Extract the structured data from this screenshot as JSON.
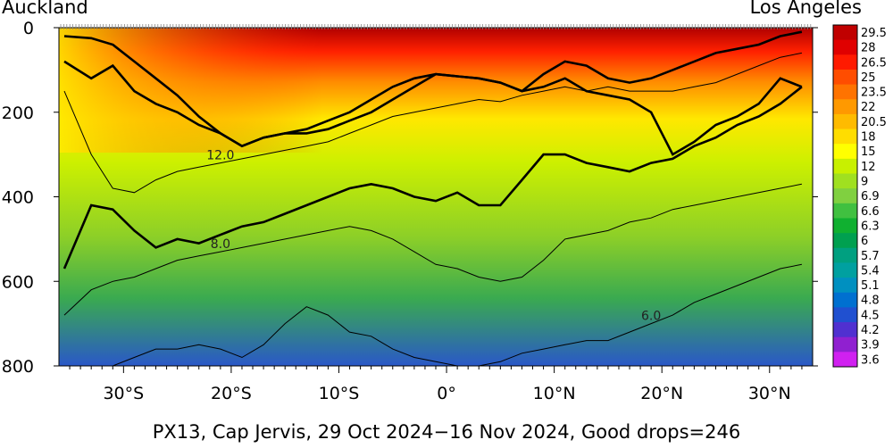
{
  "labels": {
    "left_station": "Auckland",
    "right_station": "Los Angeles",
    "caption": "PX13, Cap Jervis, 29 Oct 2024−16 Nov 2024, Good drops=246"
  },
  "chart_data": {
    "type": "heatmap",
    "title": "PX13, Cap Jervis, 29 Oct 2024−16 Nov 2024, Good drops=246",
    "xlabel": "",
    "ylabel": "",
    "xlim": [
      -36,
      34
    ],
    "ylim": [
      800,
      0
    ],
    "x_ticks": [
      {
        "value": -30,
        "label": "30°S"
      },
      {
        "value": -20,
        "label": "20°S"
      },
      {
        "value": -10,
        "label": "10°S"
      },
      {
        "value": 0,
        "label": "0°"
      },
      {
        "value": 10,
        "label": "10°N"
      },
      {
        "value": 20,
        "label": "20°N"
      },
      {
        "value": 30,
        "label": "30°N"
      }
    ],
    "y_ticks": [
      {
        "value": 0,
        "label": "0"
      },
      {
        "value": 200,
        "label": "200"
      },
      {
        "value": 400,
        "label": "400"
      },
      {
        "value": 600,
        "label": "600"
      },
      {
        "value": 800,
        "label": "800"
      }
    ],
    "colorbar": {
      "levels": [
        "29.5",
        "28",
        "26.5",
        "25",
        "23.5",
        "22",
        "20.5",
        "18",
        "15",
        "12",
        "9",
        "6.9",
        "6.6",
        "6.3",
        "6",
        "5.7",
        "5.4",
        "5.1",
        "4.8",
        "4.5",
        "4.2",
        "3.9",
        "3.6"
      ],
      "colors": [
        "#c00000",
        "#e00000",
        "#ff1a00",
        "#ff4d00",
        "#ff7300",
        "#ff9900",
        "#ffbb00",
        "#ffdd00",
        "#ffff00",
        "#c8f000",
        "#a0e020",
        "#80d040",
        "#40c040",
        "#10b030",
        "#00a050",
        "#00a080",
        "#00a0a0",
        "#0090c0",
        "#0070d0",
        "#2050d0",
        "#5030d0",
        "#9020d0",
        "#d020f0"
      ]
    },
    "contours": [
      {
        "label": "",
        "bold": true,
        "x": [
          -35.5,
          -33,
          -31,
          -29,
          -27,
          -25,
          -23,
          -21,
          -19,
          -17,
          -15,
          -13,
          -11,
          -9,
          -7,
          -5,
          -3,
          -1,
          1,
          3,
          5,
          7,
          9,
          11,
          13,
          15,
          17,
          19,
          21,
          23,
          25,
          27,
          29,
          31,
          33
        ],
        "y": [
          20,
          25,
          40,
          80,
          120,
          160,
          210,
          250,
          280,
          260,
          250,
          240,
          220,
          200,
          170,
          140,
          120,
          110,
          115,
          120,
          130,
          150,
          110,
          80,
          90,
          120,
          130,
          120,
          100,
          80,
          60,
          50,
          40,
          20,
          10
        ]
      },
      {
        "label": "",
        "bold": true,
        "x": [
          -35.5,
          -33,
          -31,
          -29,
          -27,
          -25,
          -23,
          -21,
          -19,
          -17,
          -15,
          -13,
          -11,
          -9,
          -7,
          -5,
          -3,
          -1,
          1,
          3,
          5,
          7,
          9,
          11,
          13,
          15,
          17,
          19,
          21,
          23,
          25,
          27,
          29,
          31,
          33
        ],
        "y": [
          80,
          120,
          90,
          150,
          180,
          200,
          230,
          250,
          280,
          260,
          250,
          250,
          240,
          220,
          200,
          170,
          140,
          110,
          115,
          120,
          130,
          150,
          140,
          120,
          150,
          160,
          170,
          200,
          300,
          270,
          230,
          210,
          180,
          120,
          140
        ]
      },
      {
        "label": "12.0",
        "bold": false,
        "x": [
          -35.5,
          -33,
          -31,
          -29,
          -27,
          -25,
          -23,
          -21,
          -19,
          -17,
          -15,
          -13,
          -11,
          -9,
          -7,
          -5,
          -3,
          -1,
          1,
          3,
          5,
          7,
          9,
          11,
          13,
          15,
          17,
          19,
          21,
          23,
          25,
          27,
          29,
          31,
          33
        ],
        "y": [
          150,
          300,
          380,
          390,
          360,
          340,
          330,
          320,
          310,
          300,
          290,
          280,
          270,
          250,
          230,
          210,
          200,
          190,
          180,
          170,
          175,
          160,
          150,
          140,
          150,
          140,
          150,
          150,
          150,
          140,
          130,
          110,
          90,
          70,
          60
        ]
      },
      {
        "label": "",
        "bold": true,
        "x": [
          -35.5,
          -33,
          -31,
          -29,
          -27,
          -25,
          -23,
          -21,
          -19,
          -17,
          -15,
          -13,
          -11,
          -9,
          -7,
          -5,
          -3,
          -1,
          1,
          3,
          5,
          7,
          9,
          11,
          13,
          15,
          17,
          19,
          21,
          23,
          25,
          27,
          29,
          31,
          33
        ],
        "y": [
          570,
          420,
          430,
          480,
          520,
          500,
          510,
          490,
          470,
          460,
          440,
          420,
          400,
          380,
          370,
          380,
          400,
          410,
          390,
          420,
          420,
          360,
          300,
          300,
          320,
          330,
          340,
          320,
          310,
          280,
          260,
          230,
          210,
          180,
          140
        ]
      },
      {
        "label": "8.0",
        "bold": false,
        "x": [
          -35.5,
          -33,
          -31,
          -29,
          -27,
          -25,
          -23,
          -21,
          -19,
          -17,
          -15,
          -13,
          -11,
          -9,
          -7,
          -5,
          -3,
          -1,
          1,
          3,
          5,
          7,
          9,
          11,
          13,
          15,
          17,
          19,
          21,
          23,
          25,
          27,
          29,
          31,
          33
        ],
        "y": [
          680,
          620,
          600,
          590,
          570,
          550,
          540,
          530,
          520,
          510,
          500,
          490,
          480,
          470,
          480,
          500,
          530,
          560,
          570,
          590,
          600,
          590,
          550,
          500,
          490,
          480,
          460,
          450,
          430,
          420,
          410,
          400,
          390,
          380,
          370
        ]
      },
      {
        "label": "6.0",
        "bold": false,
        "x": [
          -35.5,
          -33,
          -31,
          -29,
          -27,
          -25,
          -23,
          -21,
          -19,
          -17,
          -15,
          -13,
          -11,
          -9,
          -7,
          -5,
          -3,
          -1,
          1,
          3,
          5,
          7,
          9,
          11,
          13,
          15,
          17,
          19,
          21,
          23,
          25,
          27,
          29,
          31,
          33
        ],
        "y": [
          800,
          800,
          800,
          780,
          760,
          760,
          750,
          760,
          780,
          750,
          700,
          660,
          680,
          720,
          730,
          760,
          780,
          790,
          800,
          800,
          790,
          770,
          760,
          750,
          740,
          740,
          720,
          700,
          680,
          650,
          630,
          610,
          590,
          570,
          560
        ]
      }
    ]
  }
}
